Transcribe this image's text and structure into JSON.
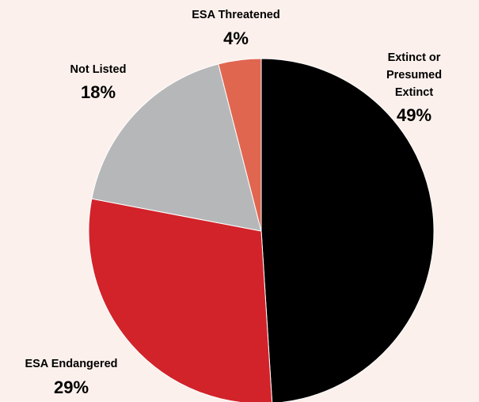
{
  "chart_data": {
    "type": "pie",
    "title": "",
    "start_angle_deg": 0,
    "direction": "clockwise",
    "slices": [
      {
        "name": "Extinct or Presumed Extinct",
        "name_lines": [
          "Extinct or",
          "Presumed",
          "Extinct"
        ],
        "value": 49,
        "label": "49%",
        "color": "#000000"
      },
      {
        "name": "ESA Endangered",
        "name_lines": [
          "ESA Endangered"
        ],
        "value": 29,
        "label": "29%",
        "color": "#d2232a"
      },
      {
        "name": "Not Listed",
        "name_lines": [
          "Not Listed"
        ],
        "value": 18,
        "label": "18%",
        "color": "#b6b7b9"
      },
      {
        "name": "ESA Threatened",
        "name_lines": [
          "ESA Threatened"
        ],
        "value": 4,
        "label": "4%",
        "color": "#e06650"
      }
    ]
  }
}
